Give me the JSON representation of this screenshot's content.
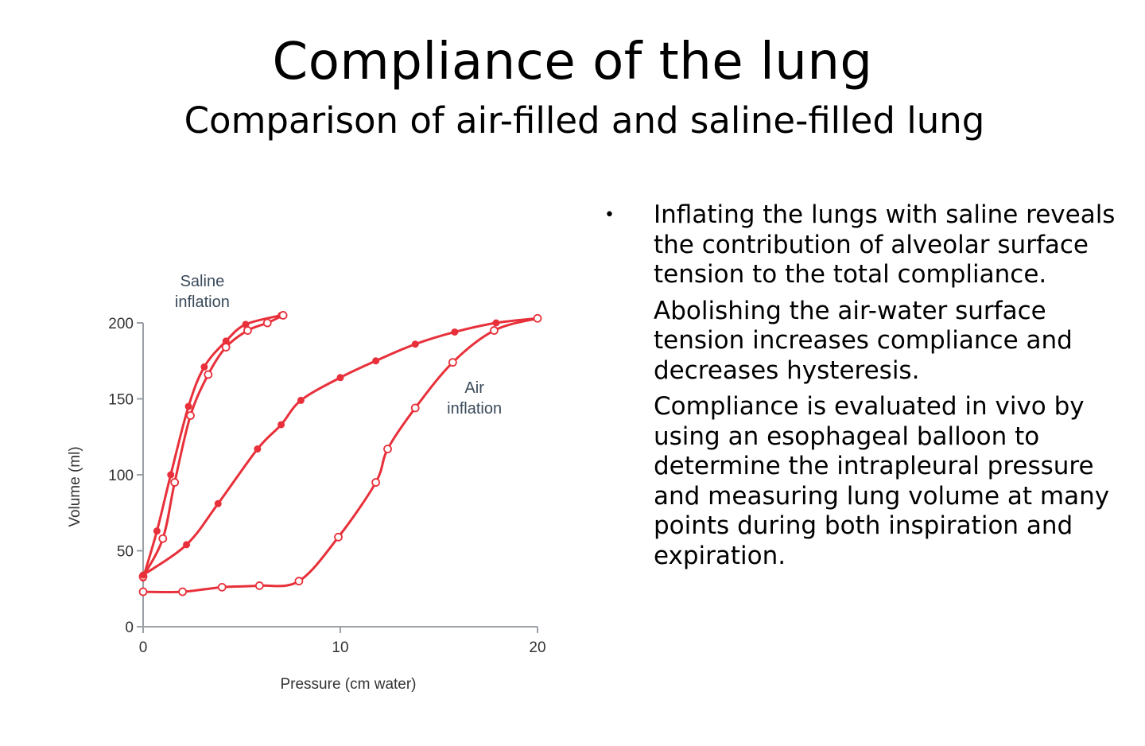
{
  "slide": {
    "title": "Compliance of the lung",
    "subtitle": "Comparison of air-filled and saline-filled lung"
  },
  "bullets": {
    "marker": "•",
    "paragraphs": [
      "Inflating the lungs with saline reveals the contribution of alveolar surface tension to the total compliance.",
      "Abolishing the air-water surface tension increases  compliance and decreases hysteresis.",
      "Compliance is evaluated in vivo by using an esophageal balloon to determine the intrapleural pressure and measuring lung volume at many points during both inspiration and expiration."
    ]
  },
  "chart_data": {
    "type": "line",
    "title": "",
    "xlabel": "Pressure (cm water)",
    "ylabel": "Volume (ml)",
    "xlim": [
      0,
      20
    ],
    "ylim": [
      0,
      200
    ],
    "x_ticks": [
      0,
      10,
      20
    ],
    "y_ticks": [
      0,
      50,
      100,
      150,
      200
    ],
    "grid": false,
    "legend": "none",
    "line_color": "#e8303a",
    "annotations": [
      {
        "text": [
          "Saline",
          "inflation"
        ],
        "x": 3.0,
        "y": 224,
        "color": "#3a4a5a"
      },
      {
        "text": [
          "Air",
          "inflation"
        ],
        "x": 16.8,
        "y": 154,
        "color": "#3a4a5a"
      }
    ],
    "series": [
      {
        "name": "Saline inflation (deflation limb)",
        "marker": "filled",
        "x": [
          0,
          0.7,
          1.4,
          2.3,
          3.1,
          4.2,
          5.2,
          7.0
        ],
        "y": [
          32,
          63,
          100,
          145,
          171,
          188,
          199,
          205
        ]
      },
      {
        "name": "Saline inflation (inflation limb)",
        "marker": "open",
        "x": [
          0,
          1.0,
          1.6,
          2.4,
          3.3,
          4.2,
          5.3,
          6.3,
          7.1
        ],
        "y": [
          33,
          58,
          95,
          139,
          166,
          184,
          195,
          200,
          205
        ]
      },
      {
        "name": "Air inflation (deflation limb)",
        "marker": "filled",
        "x": [
          0,
          2.2,
          3.8,
          5.8,
          7.0,
          8.0,
          10.0,
          11.8,
          13.8,
          15.8,
          17.9,
          20.0
        ],
        "y": [
          34,
          54,
          81,
          117,
          133,
          149,
          164,
          175,
          186,
          194,
          200,
          203
        ]
      },
      {
        "name": "Air inflation (inflation limb)",
        "marker": "open",
        "x": [
          0,
          2.0,
          4.0,
          5.9,
          7.9,
          9.9,
          11.8,
          12.4,
          13.8,
          15.7,
          17.8,
          20.0
        ],
        "y": [
          23,
          23,
          26,
          27,
          30,
          59,
          95,
          117,
          144,
          174,
          195,
          203
        ]
      }
    ]
  }
}
